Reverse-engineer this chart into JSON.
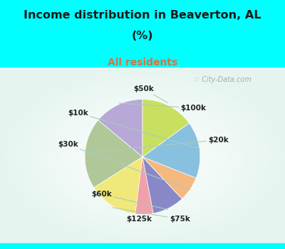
{
  "title_line1": "Income distribution in Beaverton, AL",
  "title_line2": "(%)",
  "subtitle": "All residents",
  "title_color": "#1a1a1a",
  "subtitle_color": "#cc7744",
  "bg_color": "#00ffff",
  "chart_bg_left": "#d6f0e8",
  "chart_bg_right": "#f0faf8",
  "watermark": "City-Data.com",
  "labels": [
    "$100k",
    "$20k",
    "$75k",
    "$125k",
    "$60k",
    "$30k",
    "$10k",
    "$50k"
  ],
  "values": [
    14,
    20,
    14,
    5,
    9,
    7,
    16,
    15
  ],
  "colors": [
    "#b8a8d8",
    "#b0c898",
    "#f0e87a",
    "#f0a0a8",
    "#8888c8",
    "#f4b880",
    "#88c0e0",
    "#c8e060"
  ],
  "startangle": 90,
  "figsize": [
    4.0,
    3.5
  ],
  "dpi": 100
}
